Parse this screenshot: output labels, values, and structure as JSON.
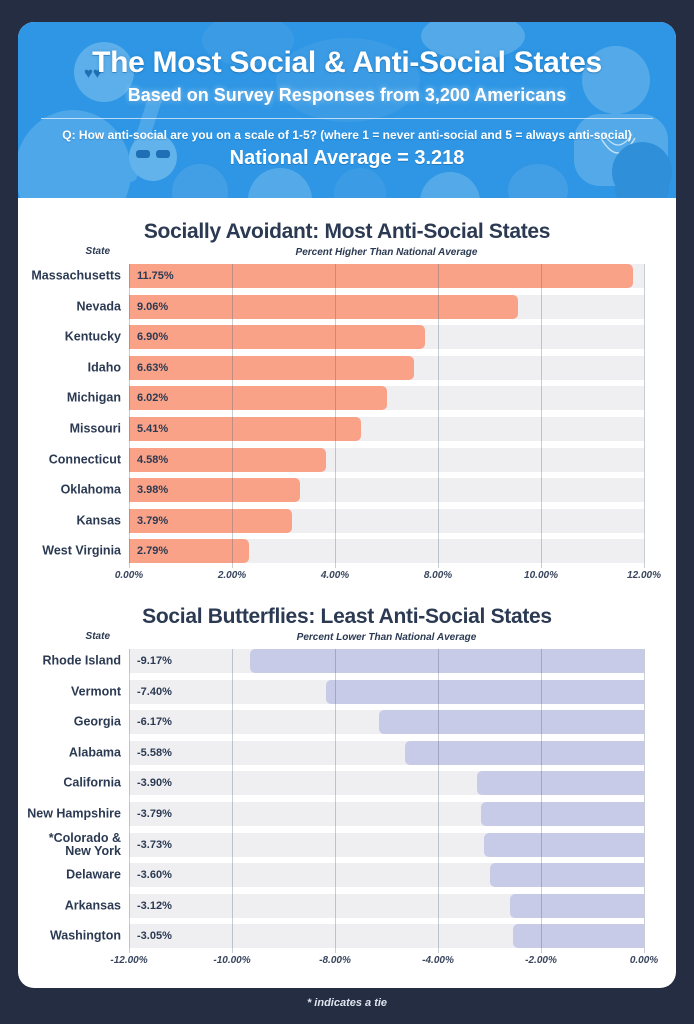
{
  "colors": {
    "page_bg": "#242D42",
    "card_bg": "#FFFFFF",
    "header_bg": "#2E96E4",
    "navy_text": "#2B3A52",
    "salmon": "#F9A288",
    "lavender": "#C7CBE8",
    "track_gray": "#EFEFF2"
  },
  "header": {
    "title": "The Most Social & Anti-Social States",
    "subtitle": "Based on Survey Responses from 3,200 Americans",
    "question": "Q: How anti-social are you on a scale of 1-5? (where 1 = never anti-social and 5 = always anti-social)",
    "national_average": "National Average = 3.218"
  },
  "footnote": "* indicates a tie",
  "chart_data": [
    {
      "type": "bar",
      "orientation": "horizontal",
      "title": "Socially Avoidant: Most Anti-Social States",
      "row_header": "State",
      "xlabel": "Percent Higher Than National Average",
      "categories": [
        "Massachusetts",
        "Nevada",
        "Kentucky",
        "Idaho",
        "Michigan",
        "Missouri",
        "Connecticut",
        "Oklahoma",
        "Kansas",
        "West Virginia"
      ],
      "values": [
        11.75,
        9.06,
        6.9,
        6.63,
        6.02,
        5.41,
        4.58,
        3.98,
        3.79,
        2.79
      ],
      "value_labels": [
        "11.75%",
        "9.06%",
        "6.90%",
        "6.63%",
        "6.02%",
        "5.41%",
        "4.58%",
        "3.98%",
        "3.79%",
        "2.79%"
      ],
      "tick_labels": [
        "0.00%",
        "2.00%",
        "4.00%",
        "8.00%",
        "10.00%",
        "12.00%"
      ],
      "xlim": [
        0,
        12
      ],
      "grid": true,
      "bar_color": "#F9A288",
      "track_color": "#EFEFF2"
    },
    {
      "type": "bar",
      "orientation": "horizontal",
      "title": "Social Butterflies: Least Anti-Social States",
      "row_header": "State",
      "xlabel": "Percent Lower Than National Average",
      "categories": [
        "Rhode Island",
        "Vermont",
        "Georgia",
        "Alabama",
        "California",
        "New Hampshire",
        "*Colorado &\nNew York",
        "Delaware",
        "Arkansas",
        "Washington"
      ],
      "values": [
        -9.17,
        -7.4,
        -6.17,
        -5.58,
        -3.9,
        -3.79,
        -3.73,
        -3.6,
        -3.12,
        -3.05
      ],
      "value_labels": [
        "-9.17%",
        "-7.40%",
        "-6.17%",
        "-5.58%",
        "-3.90%",
        "-3.79%",
        "-3.73%",
        "-3.60%",
        "-3.12%",
        "-3.05%"
      ],
      "tick_labels": [
        "-12.00%",
        "-10.00%",
        "-8.00%",
        "-4.00%",
        "-2.00%",
        "0.00%"
      ],
      "xlim": [
        -12,
        0
      ],
      "grid": true,
      "bar_color": "#C7CBE8",
      "track_color": "#EFEFF2"
    }
  ]
}
